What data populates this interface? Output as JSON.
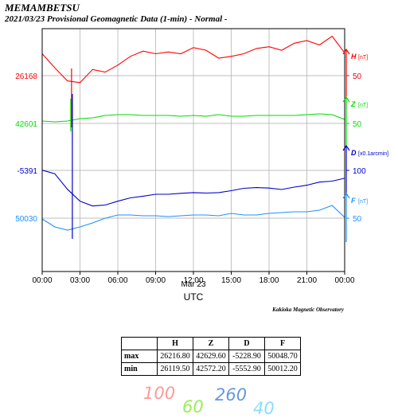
{
  "header": {
    "station": "MEMAMBETSU",
    "subtitle": "2021/03/23  Provisional Geomagnetic Data (1-min)  - Normal -"
  },
  "chart_data": {
    "type": "line",
    "x": [
      "00:00",
      "01:00",
      "02:00",
      "03:00",
      "04:00",
      "05:00",
      "06:00",
      "07:00",
      "08:00",
      "09:00",
      "10:00",
      "11:00",
      "12:00",
      "13:00",
      "14:00",
      "15:00",
      "16:00",
      "17:00",
      "18:00",
      "19:00",
      "20:00",
      "21:00",
      "22:00",
      "23:00",
      "24:00"
    ],
    "x_tick_labels": [
      "00:00",
      "03:00",
      "06:00",
      "09:00",
      "12:00",
      "15:00",
      "18:00",
      "21:00",
      "00:00"
    ],
    "x_sublabel": "Mar 23",
    "xlabel": "UTC",
    "grid": true,
    "series": [
      {
        "name": "H",
        "unit": "[nT]",
        "color": "#ff0000",
        "baseline": 26168,
        "right_tick": 50,
        "values": [
          26193,
          26177,
          26162,
          26160,
          26175,
          26172,
          26180,
          26190,
          26196,
          26193,
          26195,
          26193,
          26200,
          26197,
          26188,
          26190,
          26193,
          26199,
          26201,
          26197,
          26205,
          26208,
          26203,
          26213,
          26194
        ]
      },
      {
        "name": "Z",
        "unit": "[nT]",
        "color": "#00dd00",
        "baseline": 42601,
        "right_tick": 50,
        "values": [
          42604,
          42603,
          42604,
          42607,
          42608,
          42611,
          42612,
          42612,
          42611,
          42611,
          42611,
          42610,
          42611,
          42610,
          42612,
          42610,
          42610,
          42611,
          42611,
          42611,
          42611,
          42612,
          42613,
          42612,
          42606
        ]
      },
      {
        "name": "D",
        "unit": "[x0.1arcmin]",
        "color": "#0000cc",
        "baseline": -5391,
        "right_tick": 100,
        "values": [
          -5390,
          -5405,
          -5470,
          -5520,
          -5540,
          -5536,
          -5520,
          -5506,
          -5499,
          -5491,
          -5491,
          -5487,
          -5484,
          -5486,
          -5484,
          -5476,
          -5466,
          -5463,
          -5465,
          -5471,
          -5461,
          -5453,
          -5440,
          -5436,
          -5424
        ]
      },
      {
        "name": "F",
        "unit": "[nT]",
        "color": "#1e90ff",
        "baseline": 50030,
        "right_tick": 50,
        "values": [
          50029,
          50019,
          50015,
          50019,
          50024,
          50030,
          50034,
          50034,
          50033,
          50033,
          50032,
          50033,
          50034,
          50034,
          50033,
          50036,
          50034,
          50034,
          50036,
          50037,
          50038,
          50038,
          50040,
          50046,
          50031
        ]
      }
    ],
    "spike": {
      "series": "H, Z, D",
      "time": "02:20"
    }
  },
  "scale_legend": [
    {
      "label": "100",
      "color": "#ff9999"
    },
    {
      "label": "60",
      "color": "#99ee55"
    },
    {
      "label": "260",
      "color": "#6699dd"
    },
    {
      "label": "40",
      "color": "#88ddff"
    }
  ],
  "footer": {
    "credit": "Kakioka Magnetic Observatory"
  },
  "stats_table": {
    "headers": [
      "H",
      "Z",
      "D",
      "F"
    ],
    "rows": [
      {
        "label": "max",
        "values": [
          "26216.80",
          "42629.60",
          "-5228.90",
          "50048.70"
        ]
      },
      {
        "label": "min",
        "values": [
          "26119.50",
          "42572.20",
          "-5552.90",
          "50012.20"
        ]
      }
    ]
  }
}
